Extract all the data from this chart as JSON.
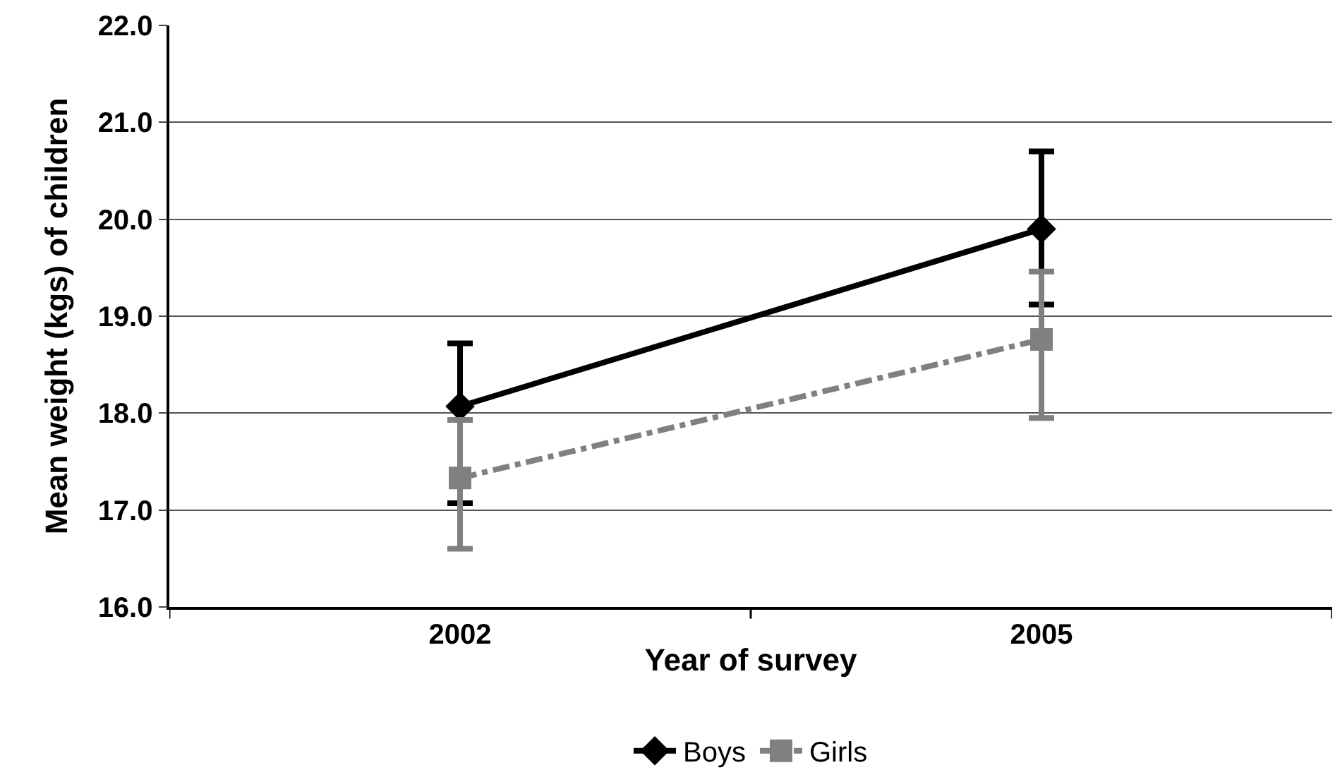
{
  "chart_data": {
    "type": "line",
    "xlabel": "Year of survey",
    "ylabel": "Mean weight (kgs) of children",
    "categories": [
      "2002",
      "2005"
    ],
    "series": [
      {
        "name": "Boys",
        "color": "#000000",
        "values": [
          18.07,
          19.9
        ],
        "errors": [
          [
            17.07,
            18.72
          ],
          [
            19.12,
            20.7
          ]
        ],
        "marker": "diamond",
        "line_style": "solid"
      },
      {
        "name": "Girls",
        "color": "#808080",
        "values": [
          17.33,
          18.76
        ],
        "errors": [
          [
            16.6,
            17.93
          ],
          [
            17.95,
            19.46
          ]
        ],
        "marker": "square",
        "line_style": "dashdot"
      }
    ],
    "ylim": [
      16,
      22
    ],
    "yticks": [
      {
        "value": 16,
        "label": "16.0"
      },
      {
        "value": 17,
        "label": "17.0"
      },
      {
        "value": 18,
        "label": "18.0"
      },
      {
        "value": 19,
        "label": "19.0"
      },
      {
        "value": 20,
        "label": "20.0"
      },
      {
        "value": 21,
        "label": "21.0"
      },
      {
        "value": 22,
        "label": "22.0"
      }
    ],
    "grid": "y",
    "legend": "bottom"
  }
}
